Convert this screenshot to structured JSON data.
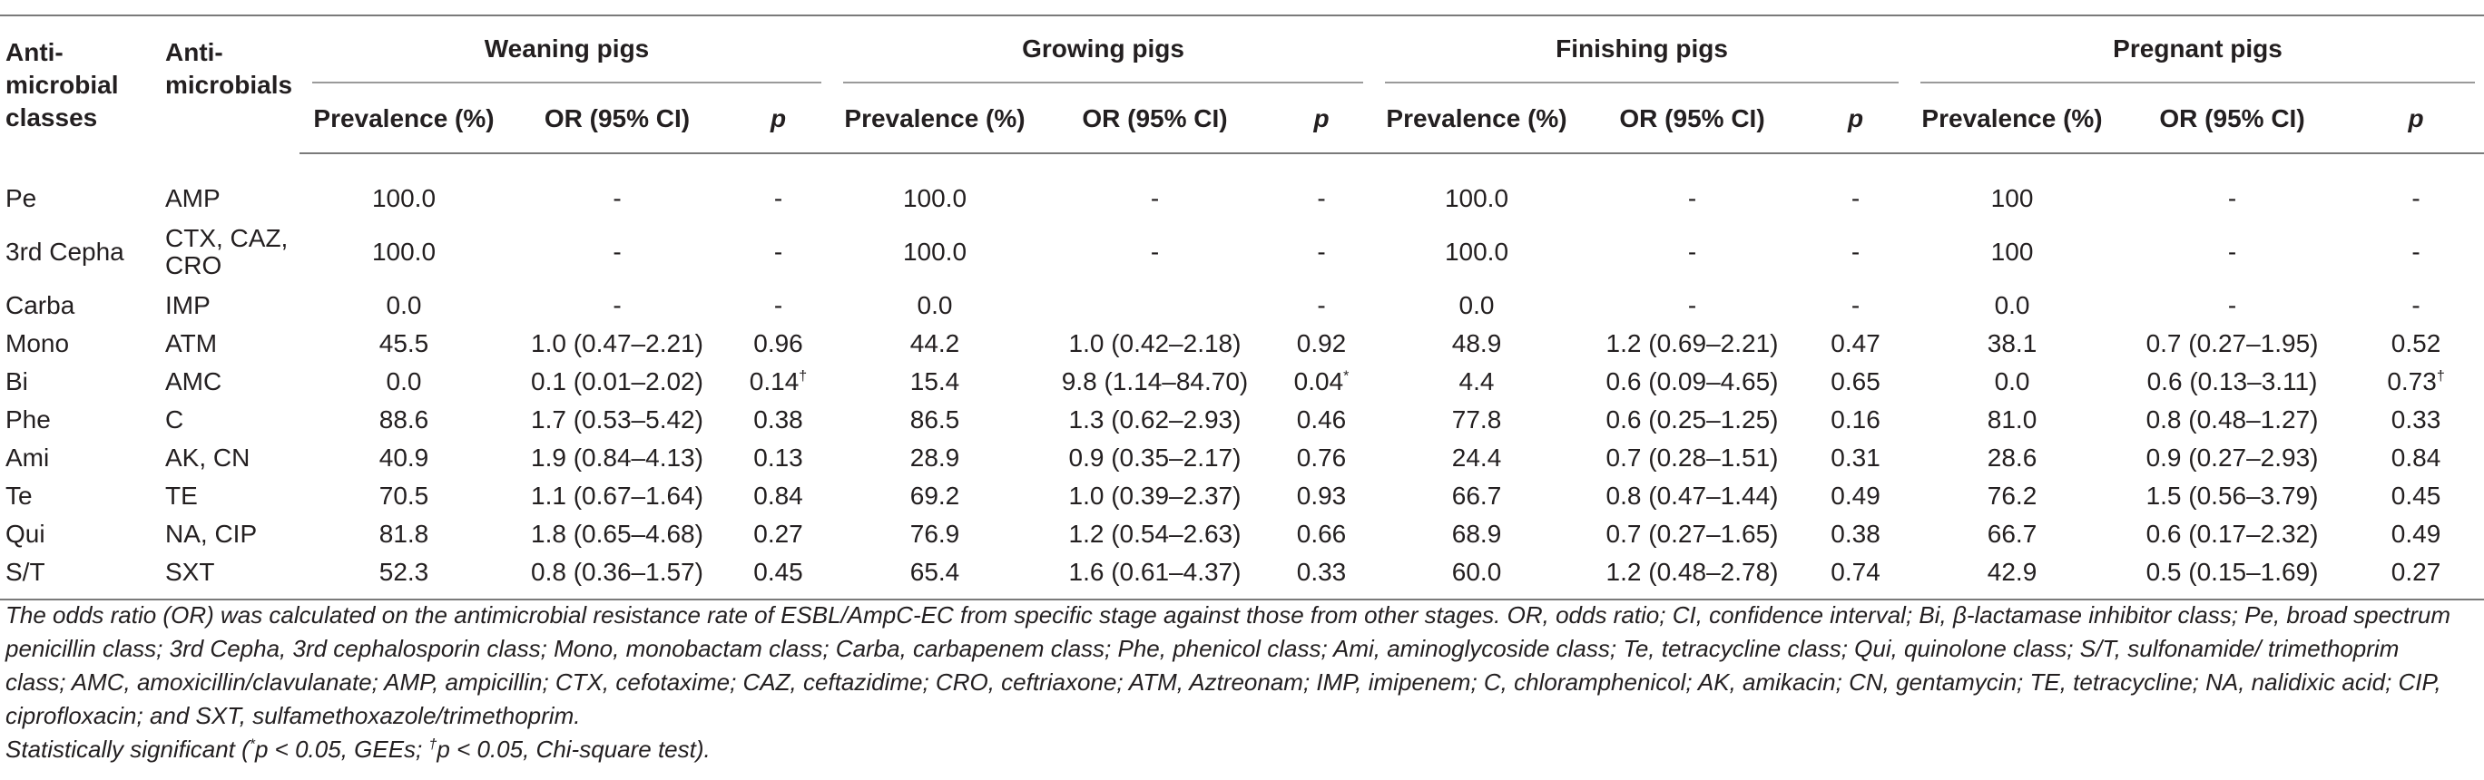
{
  "table": {
    "head": {
      "col_class": "Anti-microbial classes",
      "col_drug": "Anti-microbials",
      "groups": [
        "Weaning pigs",
        "Growing pigs",
        "Finishing pigs",
        "Pregnant pigs"
      ],
      "sub_prev": "Prevalence (%)",
      "sub_or": "OR (95% CI)",
      "sub_p": "p"
    },
    "rows": [
      {
        "cls": "Pe",
        "drug": "AMP",
        "w_prev": "100.0",
        "w_or": "-",
        "w_p": "-",
        "w_sup": "",
        "g_prev": "100.0",
        "g_or": "-",
        "g_p": "-",
        "g_sup": "",
        "f_prev": "100.0",
        "f_or": "-",
        "f_p": "-",
        "f_sup": "",
        "pr_prev": "100",
        "pr_or": "-",
        "pr_p": "-",
        "pr_sup": ""
      },
      {
        "cls": "3rd Cepha",
        "drug": "CTX, CAZ, CRO",
        "w_prev": "100.0",
        "w_or": "-",
        "w_p": "-",
        "w_sup": "",
        "g_prev": "100.0",
        "g_or": "-",
        "g_p": "-",
        "g_sup": "",
        "f_prev": "100.0",
        "f_or": "-",
        "f_p": "-",
        "f_sup": "",
        "pr_prev": "100",
        "pr_or": "-",
        "pr_p": "-",
        "pr_sup": ""
      },
      {
        "cls": "Carba",
        "drug": "IMP",
        "w_prev": "0.0",
        "w_or": "-",
        "w_p": "-",
        "w_sup": "",
        "g_prev": "0.0",
        "g_or": "",
        "g_p": "-",
        "g_sup": "",
        "f_prev": "0.0",
        "f_or": "-",
        "f_p": "-",
        "f_sup": "",
        "pr_prev": "0.0",
        "pr_or": "-",
        "pr_p": "-",
        "pr_sup": ""
      },
      {
        "cls": "Mono",
        "drug": "ATM",
        "w_prev": "45.5",
        "w_or": "1.0 (0.47–2.21)",
        "w_p": "0.96",
        "w_sup": "",
        "g_prev": "44.2",
        "g_or": "1.0 (0.42–2.18)",
        "g_p": "0.92",
        "g_sup": "",
        "f_prev": "48.9",
        "f_or": "1.2 (0.69–2.21)",
        "f_p": "0.47",
        "f_sup": "",
        "pr_prev": "38.1",
        "pr_or": "0.7 (0.27–1.95)",
        "pr_p": "0.52",
        "pr_sup": ""
      },
      {
        "cls": "Bi",
        "drug": "AMC",
        "w_prev": "0.0",
        "w_or": "0.1 (0.01–2.02)",
        "w_p": "0.14",
        "w_sup": "†",
        "g_prev": "15.4",
        "g_or": "9.8 (1.14–84.70)",
        "g_p": "0.04",
        "g_sup": "*",
        "f_prev": "4.4",
        "f_or": "0.6 (0.09–4.65)",
        "f_p": "0.65",
        "f_sup": "",
        "pr_prev": "0.0",
        "pr_or": "0.6 (0.13–3.11)",
        "pr_p": "0.73",
        "pr_sup": "†"
      },
      {
        "cls": "Phe",
        "drug": "C",
        "w_prev": "88.6",
        "w_or": "1.7 (0.53–5.42)",
        "w_p": "0.38",
        "w_sup": "",
        "g_prev": "86.5",
        "g_or": "1.3 (0.62–2.93)",
        "g_p": "0.46",
        "g_sup": "",
        "f_prev": "77.8",
        "f_or": "0.6 (0.25–1.25)",
        "f_p": "0.16",
        "f_sup": "",
        "pr_prev": "81.0",
        "pr_or": "0.8 (0.48–1.27)",
        "pr_p": "0.33",
        "pr_sup": ""
      },
      {
        "cls": "Ami",
        "drug": "AK, CN",
        "w_prev": "40.9",
        "w_or": "1.9 (0.84–4.13)",
        "w_p": "0.13",
        "w_sup": "",
        "g_prev": "28.9",
        "g_or": "0.9 (0.35–2.17)",
        "g_p": "0.76",
        "g_sup": "",
        "f_prev": "24.4",
        "f_or": "0.7 (0.28–1.51)",
        "f_p": "0.31",
        "f_sup": "",
        "pr_prev": "28.6",
        "pr_or": "0.9 (0.27–2.93)",
        "pr_p": "0.84",
        "pr_sup": ""
      },
      {
        "cls": "Te",
        "drug": "TE",
        "w_prev": "70.5",
        "w_or": "1.1 (0.67–1.64)",
        "w_p": "0.84",
        "w_sup": "",
        "g_prev": "69.2",
        "g_or": "1.0 (0.39–2.37)",
        "g_p": "0.93",
        "g_sup": "",
        "f_prev": "66.7",
        "f_or": "0.8 (0.47–1.44)",
        "f_p": "0.49",
        "f_sup": "",
        "pr_prev": "76.2",
        "pr_or": "1.5 (0.56–3.79)",
        "pr_p": "0.45",
        "pr_sup": ""
      },
      {
        "cls": "Qui",
        "drug": "NA, CIP",
        "w_prev": "81.8",
        "w_or": "1.8 (0.65–4.68)",
        "w_p": "0.27",
        "w_sup": "",
        "g_prev": "76.9",
        "g_or": "1.2 (0.54–2.63)",
        "g_p": "0.66",
        "g_sup": "",
        "f_prev": "68.9",
        "f_or": "0.7 (0.27–1.65)",
        "f_p": "0.38",
        "f_sup": "",
        "pr_prev": "66.7",
        "pr_or": "0.6 (0.17–2.32)",
        "pr_p": "0.49",
        "pr_sup": ""
      },
      {
        "cls": "S/T",
        "drug": "SXT",
        "w_prev": "52.3",
        "w_or": "0.8 (0.36–1.57)",
        "w_p": "0.45",
        "w_sup": "",
        "g_prev": "65.4",
        "g_or": "1.6 (0.61–4.37)",
        "g_p": "0.33",
        "g_sup": "",
        "f_prev": "60.0",
        "f_or": "1.2 (0.48–2.78)",
        "f_p": "0.74",
        "f_sup": "",
        "pr_prev": "42.9",
        "pr_or": "0.5 (0.15–1.69)",
        "pr_p": "0.27",
        "pr_sup": ""
      }
    ]
  },
  "footnote": {
    "main": "The odds ratio (OR) was calculated on the antimicrobial resistance rate of ESBL/AmpC-EC from specific stage against those from other stages. OR, odds ratio; CI, confidence interval; Bi, β-lactamase inhibitor class; Pe, broad spectrum penicillin class; 3rd Cepha, 3rd cephalosporin class; Mono, monobactam class; Carba, carbapenem class; Phe, phenicol class; Ami, aminoglycoside class; Te, tetracycline class; Qui, quinolone class; S/T, sulfonamide/ trimethoprim class; AMC, amoxicillin/clavulanate; AMP, ampicillin; CTX, cefotaxime; CAZ, ceftazidime; CRO, ceftriaxone; ATM, Aztreonam; IMP, imipenem; C, chloramphenicol; AK, amikacin; CN, gentamycin; TE, tetracycline; NA, nalidixic acid; CIP, ciprofloxacin; and SXT, sulfamethoxazole/trimethoprim.",
    "sig_prefix": "Statistically significant (",
    "sig_star": "*",
    "sig_mid": "p < 0.05, GEEs; ",
    "sig_dagger": "†",
    "sig_end": "p < 0.05, Chi-square test)."
  }
}
